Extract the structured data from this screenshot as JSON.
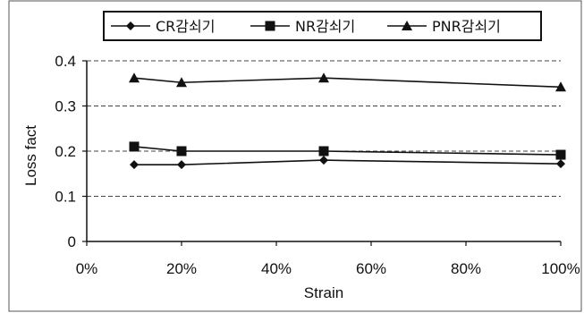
{
  "chart_data": {
    "type": "line",
    "xlabel": "Strain",
    "ylabel": "Loss fact",
    "x_ticks": [
      "0%",
      "20%",
      "40%",
      "60%",
      "80%",
      "100%"
    ],
    "y_ticks": [
      "0",
      "0.1",
      "0.2",
      "0.3",
      "0.4"
    ],
    "xlim": [
      0,
      100
    ],
    "ylim": [
      0,
      0.4
    ],
    "x": [
      10,
      20,
      50,
      100
    ],
    "series": [
      {
        "name": "CR감쇠기",
        "marker": "diamond",
        "values": [
          0.17,
          0.17,
          0.18,
          0.172
        ]
      },
      {
        "name": "NR감쇠기",
        "marker": "square",
        "values": [
          0.21,
          0.2,
          0.2,
          0.192
        ]
      },
      {
        "name": "PNR감쇠기",
        "marker": "triangle",
        "values": [
          0.362,
          0.352,
          0.362,
          0.342
        ]
      }
    ],
    "grid": "dashed horizontal",
    "legend_position": "top"
  }
}
